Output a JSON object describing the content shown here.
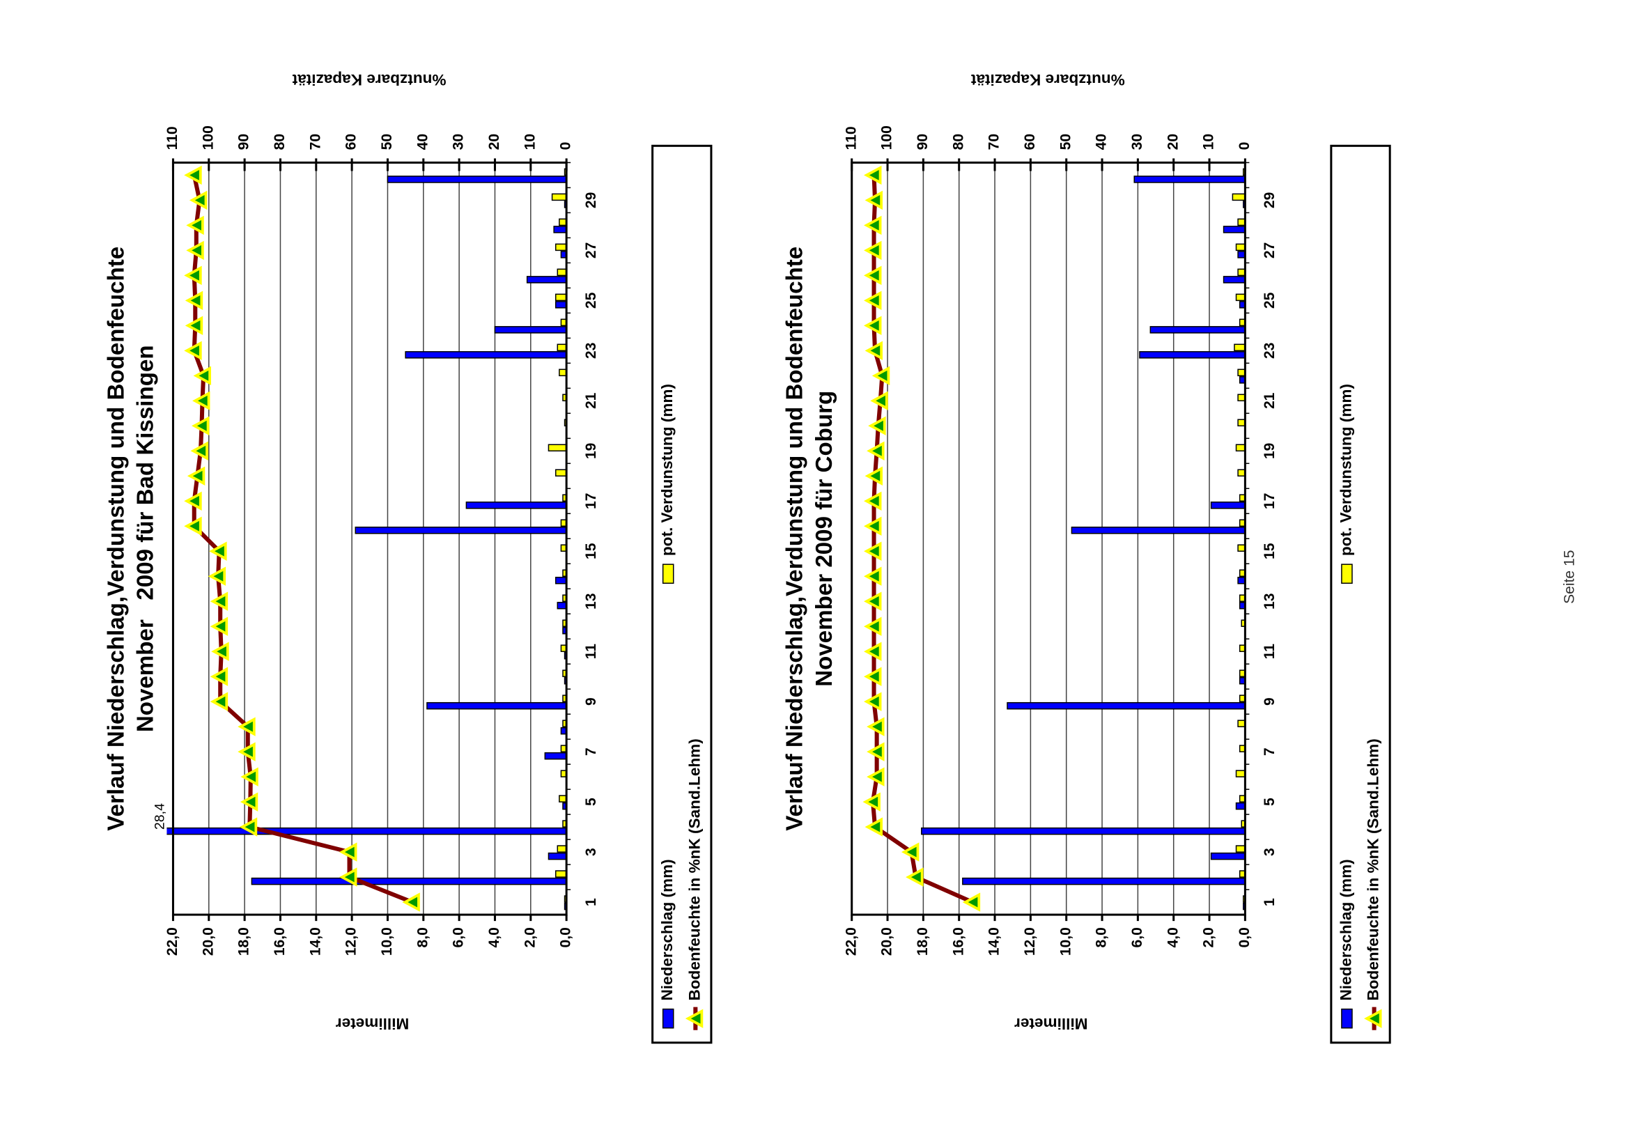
{
  "chart_data": [
    {
      "type": "bar",
      "title": "Verlauf Niederschlag,Verdunstung und Bodenfeuchte",
      "subtitle": "November   2009 für Bad Kissingen",
      "categories": [
        "1",
        null,
        "3",
        null,
        "5",
        null,
        "7",
        null,
        "9",
        null,
        "11",
        null,
        "13",
        null,
        "15",
        null,
        "17",
        null,
        "19",
        null,
        "21",
        null,
        "23",
        null,
        "25",
        null,
        "27",
        null,
        "29",
        null
      ],
      "series": [
        {
          "name": "Niederschlag (mm)",
          "color": "#0000ff",
          "values": [
            0.1,
            17.6,
            1.0,
            28.4,
            0.2,
            0,
            1.2,
            0.3,
            7.8,
            0.1,
            0.1,
            0.2,
            0.5,
            0.6,
            0,
            11.8,
            5.6,
            0,
            0,
            0,
            0,
            0,
            9.0,
            4.0,
            0.6,
            2.2,
            0.3,
            0.7,
            0.1,
            10.0
          ],
          "value_labels": [
            null,
            null,
            null,
            "28,4",
            null,
            null,
            null,
            null,
            null,
            null,
            null,
            null,
            null,
            null,
            null,
            null,
            null,
            null,
            null,
            null,
            null,
            null,
            null,
            null,
            null,
            null,
            null,
            null,
            null,
            null
          ]
        },
        {
          "name": "pot. Verdunstung (mm)",
          "color": "#ffff00",
          "values": [
            0.1,
            0.6,
            0.5,
            0.2,
            0.4,
            0.3,
            0.3,
            0.2,
            0.2,
            0.2,
            0.3,
            0.2,
            0.2,
            0.2,
            0.3,
            0.3,
            0.2,
            0.6,
            1.0,
            0.1,
            0.2,
            0.4,
            0.5,
            0.3,
            0.6,
            0.5,
            0.6,
            0.4,
            0.8,
            0.1
          ]
        },
        {
          "name": "Bodenfeuchte in %nK (Sand.Lehm)",
          "type": "line",
          "axis": "y2",
          "color": "#800000",
          "marker_color": "#ffff00",
          "values": [
            43.1,
            60.7,
            60.7,
            88.6,
            88.4,
            88.3,
            89.1,
            89.1,
            96.8,
            96.8,
            96.5,
            96.8,
            96.8,
            97.4,
            97.1,
            104.1,
            104.1,
            103.2,
            102.3,
            102.0,
            101.8,
            101.5,
            104.1,
            103.8,
            103.8,
            104.1,
            103.5,
            103.5,
            102.6,
            104.1
          ]
        }
      ],
      "ylabel": "Millimeter",
      "y2label": "%nutzbare Kapazität",
      "ylim": [
        0,
        22
      ],
      "yticks": [
        {
          "value": 0,
          "label": "0,0"
        },
        {
          "value": 2,
          "label": "2,0"
        },
        {
          "value": 4,
          "label": "4,0"
        },
        {
          "value": 6,
          "label": "6,0"
        },
        {
          "value": 8,
          "label": "8,0"
        },
        {
          "value": 10,
          "label": "10,0"
        },
        {
          "value": 12,
          "label": "12,0"
        },
        {
          "value": 14,
          "label": "14,0"
        },
        {
          "value": 16,
          "label": "16,0"
        },
        {
          "value": 18,
          "label": "18,0"
        },
        {
          "value": 20,
          "label": "20,0"
        },
        {
          "value": 22,
          "label": "22,0"
        }
      ],
      "y2lim": [
        0,
        110
      ],
      "y2ticks": [
        0,
        10,
        20,
        30,
        40,
        50,
        60,
        70,
        80,
        90,
        100,
        110
      ],
      "grid": true
    },
    {
      "type": "bar",
      "title": "Verlauf Niederschlag,Verdunstung und Bodenfeuchte",
      "subtitle": "November 2009 für Coburg",
      "categories": [
        "1",
        null,
        "3",
        null,
        "5",
        null,
        "7",
        null,
        "9",
        null,
        "11",
        null,
        "13",
        null,
        "15",
        null,
        "17",
        null,
        "19",
        null,
        "21",
        null,
        "23",
        null,
        "25",
        null,
        "27",
        null,
        "29",
        null
      ],
      "series": [
        {
          "name": "Niederschlag (mm)",
          "color": "#0000ff",
          "values": [
            0.1,
            15.8,
            1.9,
            18.1,
            0.5,
            0,
            0,
            0,
            13.3,
            0.3,
            0,
            0,
            0.3,
            0.4,
            0,
            9.7,
            1.9,
            0,
            0,
            0,
            0,
            0.3,
            5.9,
            5.3,
            0.3,
            1.2,
            0.4,
            1.2,
            0.1,
            6.2
          ]
        },
        {
          "name": "pot. Verdunstung (mm)",
          "color": "#ffff00",
          "values": [
            0.1,
            0.3,
            0.5,
            0.2,
            0.3,
            0.5,
            0.3,
            0.4,
            0.3,
            0.3,
            0.3,
            0.2,
            0.3,
            0.3,
            0.4,
            0.3,
            0.3,
            0.4,
            0.5,
            0.4,
            0.4,
            0.4,
            0.6,
            0.3,
            0.5,
            0.4,
            0.5,
            0.4,
            0.7,
            0.1
          ]
        },
        {
          "name": "Bodenfeuchte in %nK (Sand.Lehm)",
          "type": "line",
          "axis": "y2",
          "color": "#800000",
          "marker_color": "#ffff00",
          "values": [
            76.2,
            92.1,
            93.3,
            103.5,
            104.1,
            103.0,
            103.0,
            103.0,
            103.8,
            103.8,
            103.8,
            103.8,
            103.8,
            103.8,
            103.8,
            103.8,
            103.8,
            103.5,
            103.0,
            102.6,
            102.0,
            101.5,
            103.5,
            103.8,
            103.8,
            103.8,
            103.8,
            103.8,
            103.5,
            103.8
          ]
        }
      ],
      "ylabel": "Millimeter",
      "y2label": "%nutzbare Kapazität",
      "ylim": [
        0,
        22
      ],
      "yticks": [
        {
          "value": 0,
          "label": "0,0"
        },
        {
          "value": 2,
          "label": "2,0"
        },
        {
          "value": 4,
          "label": "4,0"
        },
        {
          "value": 6,
          "label": "6,0"
        },
        {
          "value": 8,
          "label": "8,0"
        },
        {
          "value": 10,
          "label": "10,0"
        },
        {
          "value": 12,
          "label": "12,0"
        },
        {
          "value": 14,
          "label": "14,0"
        },
        {
          "value": 16,
          "label": "16,0"
        },
        {
          "value": 18,
          "label": "18,0"
        },
        {
          "value": 20,
          "label": "20,0"
        },
        {
          "value": 22,
          "label": "22,0"
        }
      ],
      "y2lim": [
        0,
        110
      ],
      "y2ticks": [
        0,
        10,
        20,
        30,
        40,
        50,
        60,
        70,
        80,
        90,
        100,
        110
      ],
      "grid": true
    }
  ],
  "footer": {
    "page": "Seite 15"
  }
}
